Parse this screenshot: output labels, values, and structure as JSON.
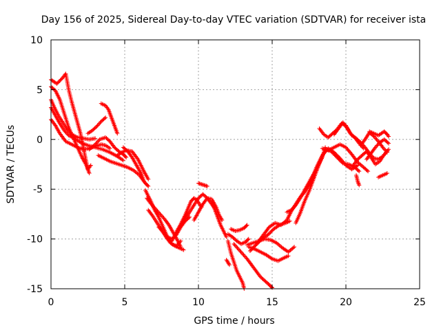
{
  "chart_data": {
    "type": "scatter",
    "title": "Day 156 of 2025, Sidereal Day-to-day VTEC variation (SDTVAR) for receiver ista",
    "xlabel": "GPS time / hours",
    "ylabel": "SDTVAR / TECUs",
    "xlim": [
      0,
      25
    ],
    "ylim": [
      -15,
      10
    ],
    "xticks": [
      "0",
      "5",
      "10",
      "15",
      "20",
      "25"
    ],
    "yticks": [
      "-15",
      "-10",
      "-5",
      "0",
      "5",
      "10"
    ],
    "grid": true,
    "marker": "plus",
    "series_color": "#ff0000",
    "series": [
      {
        "x": [
          0.0,
          0.4,
          0.8,
          1.0,
          1.2,
          1.4,
          1.7,
          2.0,
          2.3,
          2.5,
          2.7
        ],
        "y": [
          6.0,
          5.6,
          6.2,
          6.6,
          5.0,
          3.8,
          2.2,
          0.6,
          -1.6,
          -3.0,
          -2.6
        ]
      },
      {
        "x": [
          0.0,
          0.3,
          0.6,
          0.9,
          1.2,
          1.5,
          1.8,
          2.1,
          2.4,
          2.6
        ],
        "y": [
          5.3,
          4.9,
          4.0,
          2.6,
          1.2,
          0.2,
          -0.8,
          -1.8,
          -2.6,
          -3.4
        ]
      },
      {
        "x": [
          0.0,
          0.2,
          0.5,
          0.8,
          1.1,
          1.4,
          1.8,
          2.2,
          2.6,
          3.0
        ],
        "y": [
          4.0,
          3.3,
          2.4,
          1.7,
          1.0,
          0.5,
          0.2,
          0.1,
          0.0,
          0.1
        ]
      },
      {
        "x": [
          0.0,
          0.3,
          0.6,
          0.9,
          1.2,
          1.6,
          2.0,
          2.5,
          3.0,
          3.5,
          4.0,
          4.5,
          4.9
        ],
        "y": [
          3.2,
          2.4,
          1.6,
          0.9,
          0.4,
          0.1,
          -0.3,
          -0.6,
          -0.8,
          -1.0,
          -1.3,
          -1.7,
          -2.1
        ]
      },
      {
        "x": [
          0.0,
          0.3,
          0.6,
          1.0,
          1.4,
          1.8,
          2.2,
          2.6,
          3.0,
          3.4,
          3.7,
          4.0
        ],
        "y": [
          2.0,
          1.4,
          0.6,
          -0.2,
          -0.5,
          -0.8,
          -1.0,
          -0.9,
          -0.7,
          -0.5,
          -0.6,
          -0.9
        ]
      },
      {
        "x": [
          2.5,
          2.8,
          3.1,
          3.4,
          3.7
        ],
        "y": [
          0.6,
          0.9,
          1.3,
          1.8,
          2.2
        ]
      },
      {
        "x": [
          3.4,
          3.7,
          3.9,
          4.1,
          4.3,
          4.5
        ],
        "y": [
          3.6,
          3.4,
          3.0,
          2.2,
          1.4,
          0.6
        ]
      },
      {
        "x": [
          2.6,
          3.0,
          3.3,
          3.7,
          4.0,
          4.3,
          4.6,
          4.9,
          5.1
        ],
        "y": [
          -1.0,
          -0.5,
          0.0,
          0.2,
          -0.2,
          -0.8,
          -1.2,
          -1.5,
          -1.8
        ]
      },
      {
        "x": [
          3.2,
          3.6,
          4.0,
          4.4,
          4.8,
          5.2,
          5.6,
          6.0,
          6.4,
          6.6
        ],
        "y": [
          -1.6,
          -1.9,
          -2.2,
          -2.4,
          -2.6,
          -2.8,
          -3.1,
          -3.6,
          -4.4,
          -4.7
        ]
      },
      {
        "x": [
          4.9,
          5.2,
          5.5,
          5.8,
          6.1,
          6.3
        ],
        "y": [
          -0.8,
          -1.2,
          -1.8,
          -2.6,
          -3.4,
          -4.2
        ]
      },
      {
        "x": [
          4.5,
          4.8,
          5.1,
          5.5,
          5.9,
          6.3,
          6.6
        ],
        "y": [
          -1.6,
          -1.3,
          -1.1,
          -1.2,
          -2.0,
          -3.2,
          -4.0
        ]
      },
      {
        "x": [
          6.4,
          6.6,
          6.8,
          7.0,
          7.3,
          7.6,
          7.9,
          8.2,
          8.5,
          8.8
        ],
        "y": [
          -5.1,
          -5.7,
          -6.3,
          -7.0,
          -7.8,
          -8.8,
          -9.8,
          -10.5,
          -10.7,
          -10.2
        ]
      },
      {
        "x": [
          6.5,
          6.8,
          7.1,
          7.4,
          7.7,
          8.0,
          8.3,
          8.6,
          8.8
        ],
        "y": [
          -5.9,
          -6.5,
          -7.0,
          -7.5,
          -8.0,
          -8.6,
          -9.4,
          -10.2,
          -10.8
        ]
      },
      {
        "x": [
          6.6,
          6.9,
          7.2,
          7.5,
          7.8,
          8.1,
          8.4,
          8.7,
          9.0
        ],
        "y": [
          -7.1,
          -7.7,
          -8.4,
          -9.1,
          -9.8,
          -10.4,
          -10.7,
          -10.9,
          -11.1
        ]
      },
      {
        "x": [
          7.3,
          7.6,
          7.9,
          8.2,
          8.5,
          8.8,
          9.1,
          9.4
        ],
        "y": [
          -8.8,
          -9.3,
          -9.8,
          -10.0,
          -9.6,
          -8.8,
          -8.2,
          -7.8
        ]
      },
      {
        "x": [
          8.2,
          8.5,
          8.8,
          9.1,
          9.3,
          9.5,
          9.7,
          9.9,
          10.2
        ],
        "y": [
          -10.2,
          -9.3,
          -8.5,
          -7.6,
          -6.9,
          -6.2,
          -5.9,
          -6.1,
          -6.8
        ]
      },
      {
        "x": [
          8.8,
          9.1,
          9.4,
          9.7,
          10.0,
          10.3,
          10.6,
          10.9,
          11.1
        ],
        "y": [
          -8.7,
          -8.0,
          -7.3,
          -6.6,
          -5.9,
          -5.5,
          -5.9,
          -6.5,
          -6.9
        ]
      },
      {
        "x": [
          9.7,
          10.0,
          10.3,
          10.6,
          10.9,
          11.2,
          11.4,
          11.6
        ],
        "y": [
          -8.1,
          -7.3,
          -6.5,
          -5.9,
          -6.0,
          -6.8,
          -7.6,
          -8.1
        ]
      },
      {
        "x": [
          10.0,
          10.2,
          10.4,
          10.6
        ],
        "y": [
          -4.4,
          -4.5,
          -4.6,
          -4.7
        ]
      },
      {
        "x": [
          10.9,
          11.1,
          11.3,
          11.5,
          11.7,
          11.9
        ],
        "y": [
          -6.3,
          -7.0,
          -7.8,
          -8.6,
          -9.2,
          -9.8
        ]
      },
      {
        "x": [
          12.2,
          12.5,
          12.8,
          13.1,
          13.3
        ],
        "y": [
          -9.0,
          -9.2,
          -9.1,
          -8.9,
          -8.6
        ]
      },
      {
        "x": [
          12.0,
          12.3,
          12.6,
          12.9,
          13.2,
          13.4
        ],
        "y": [
          -9.5,
          -9.8,
          -10.2,
          -10.5,
          -10.3,
          -10.0
        ]
      },
      {
        "x": [
          12.0,
          12.2,
          12.4,
          12.6,
          12.8,
          13.0,
          13.1
        ],
        "y": [
          -10.2,
          -11.4,
          -12.3,
          -13.2,
          -13.8,
          -14.4,
          -15.0
        ]
      },
      {
        "x": [
          12.4,
          12.7,
          13.0,
          13.3,
          13.6,
          13.9,
          14.2,
          14.5,
          14.8,
          15.0
        ],
        "y": [
          -10.5,
          -11.0,
          -11.5,
          -12.0,
          -12.6,
          -13.2,
          -13.8,
          -14.2,
          -14.6,
          -14.9
        ]
      },
      {
        "x": [
          11.9,
          12.1
        ],
        "y": [
          -12.1,
          -12.6
        ]
      },
      {
        "x": [
          13.4,
          13.8,
          14.2,
          14.6,
          15.0,
          15.4,
          15.8,
          16.1
        ],
        "y": [
          -10.8,
          -11.0,
          -11.3,
          -11.6,
          -12.0,
          -12.2,
          -11.9,
          -11.7
        ]
      },
      {
        "x": [
          13.3,
          13.7,
          14.1,
          14.5,
          14.9,
          15.3,
          15.7,
          16.1,
          16.5
        ],
        "y": [
          -10.6,
          -10.4,
          -10.2,
          -10.0,
          -10.1,
          -10.4,
          -10.9,
          -11.3,
          -10.8
        ]
      },
      {
        "x": [
          13.5,
          13.9,
          14.3,
          14.7,
          15.1,
          15.5,
          15.9,
          16.2
        ],
        "y": [
          -11.2,
          -10.6,
          -10.0,
          -9.6,
          -9.0,
          -8.6,
          -8.4,
          -8.2
        ]
      },
      {
        "x": [
          14.0,
          14.4,
          14.8,
          15.2,
          15.6,
          16.0,
          16.3,
          16.6,
          16.9,
          17.2,
          17.5,
          17.8
        ],
        "y": [
          -10.4,
          -9.6,
          -8.8,
          -8.4,
          -8.6,
          -8.1,
          -7.2,
          -6.5,
          -5.8,
          -5.3,
          -4.6,
          -3.8
        ]
      },
      {
        "x": [
          16.0,
          16.3,
          16.6,
          16.9,
          17.2,
          17.5,
          17.8,
          18.1,
          18.4,
          18.6
        ],
        "y": [
          -7.3,
          -7.1,
          -6.6,
          -5.9,
          -5.1,
          -4.3,
          -3.5,
          -2.7,
          -1.8,
          -0.8
        ]
      },
      {
        "x": [
          16.6,
          16.9,
          17.2,
          17.5,
          17.8,
          18.1,
          18.4,
          18.7,
          19.0,
          19.4,
          19.8,
          20.2,
          20.6,
          20.9
        ],
        "y": [
          -8.4,
          -7.4,
          -6.2,
          -5.2,
          -4.0,
          -2.8,
          -1.6,
          -1.0,
          -1.2,
          -1.8,
          -2.4,
          -2.5,
          -2.8,
          -3.2
        ]
      },
      {
        "x": [
          17.6,
          18.0,
          18.4,
          18.8,
          19.2,
          19.6,
          20.0,
          20.4,
          20.8
        ],
        "y": [
          -4.4,
          -2.8,
          -1.6,
          -0.9,
          -1.3,
          -1.9,
          -2.6,
          -3.0,
          -2.6
        ]
      },
      {
        "x": [
          18.4,
          18.8,
          19.2,
          19.6,
          20.0,
          20.4,
          20.8,
          21.2,
          21.5
        ],
        "y": [
          -0.9,
          -1.1,
          -0.8,
          -0.5,
          -0.8,
          -1.5,
          -2.3,
          -2.8,
          -3.2
        ]
      },
      {
        "x": [
          18.2,
          18.5,
          18.8,
          19.1,
          19.4,
          19.7,
          20.0,
          20.3,
          20.6,
          20.9,
          21.2
        ],
        "y": [
          1.1,
          0.5,
          0.2,
          0.6,
          1.0,
          1.6,
          1.4,
          0.6,
          0.2,
          -0.4,
          -0.9
        ]
      },
      {
        "x": [
          19.2,
          19.5,
          19.8,
          20.1,
          20.4,
          20.7,
          21.0,
          21.3,
          21.6,
          21.9,
          22.2,
          22.5,
          22.8
        ],
        "y": [
          0.5,
          1.1,
          1.7,
          1.1,
          0.4,
          0.1,
          -0.3,
          -0.8,
          -1.4,
          -1.9,
          -2.0,
          -1.7,
          -1.2
        ]
      },
      {
        "x": [
          20.5,
          20.8,
          21.1,
          21.4,
          21.7,
          22.0,
          22.3,
          22.6,
          22.9
        ],
        "y": [
          -2.6,
          -2.0,
          -1.6,
          -1.2,
          -1.8,
          -2.5,
          -2.2,
          -1.5,
          -1.0
        ]
      },
      {
        "x": [
          20.7,
          20.8,
          20.9
        ],
        "y": [
          -3.6,
          -4.2,
          -4.6
        ]
      },
      {
        "x": [
          21.0,
          21.3,
          21.6,
          21.9,
          22.2,
          22.5,
          22.8
        ],
        "y": [
          -0.6,
          0.0,
          0.7,
          0.3,
          -0.2,
          -0.8,
          -1.3
        ]
      },
      {
        "x": [
          21.6,
          21.9,
          22.2,
          22.4,
          22.6,
          22.8,
          22.9
        ],
        "y": [
          0.8,
          0.6,
          0.4,
          0.6,
          0.8,
          0.5,
          0.3
        ]
      },
      {
        "x": [
          21.4,
          21.7,
          22.0,
          22.3,
          22.6,
          22.9
        ],
        "y": [
          -2.0,
          -1.4,
          -0.8,
          -0.3,
          0.0,
          -0.4
        ]
      },
      {
        "x": [
          22.2,
          22.5,
          22.8
        ],
        "y": [
          -3.8,
          -3.6,
          -3.4
        ]
      }
    ]
  }
}
